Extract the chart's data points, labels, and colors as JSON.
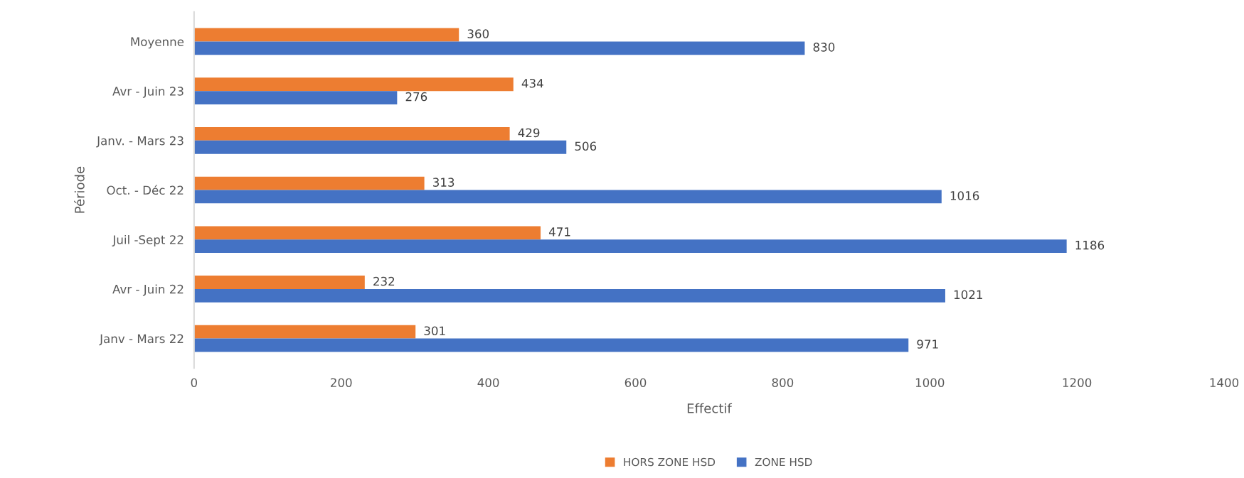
{
  "chart_data": {
    "type": "bar",
    "orientation": "horizontal",
    "xlabel": "Effectif",
    "ylabel": "Période",
    "categories": [
      "Moyenne",
      "Avr - Juin 23",
      "Janv. - Mars 23",
      "Oct. - Déc 22",
      "Juil -Sept 22",
      "Avr - Juin 22",
      "Janv - Mars 22"
    ],
    "series": [
      {
        "name": "HORS ZONE HSD",
        "color": "#ed7d31",
        "values": [
          360,
          434,
          429,
          313,
          471,
          232,
          301
        ]
      },
      {
        "name": "ZONE HSD",
        "color": "#4472c4",
        "values": [
          830,
          276,
          506,
          1016,
          1186,
          1021,
          971
        ]
      }
    ],
    "xlim": [
      0,
      1400
    ],
    "xticks": [
      0,
      200,
      400,
      600,
      800,
      1000,
      1200,
      1400
    ],
    "data_labels": true,
    "grid": false,
    "legend": "bottom"
  }
}
